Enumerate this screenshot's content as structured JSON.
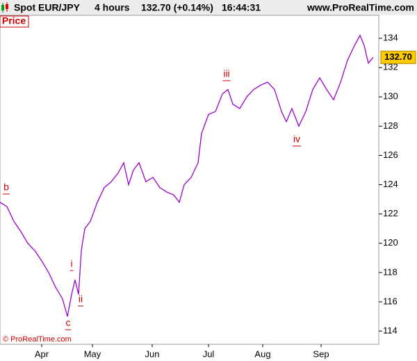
{
  "chart_data": {
    "type": "line",
    "instrument": "Spot EUR/JPY",
    "timeframe": "4 hours",
    "change": "132.70 (+0.14%)",
    "time": "16:44:31",
    "site": "www.ProRealTime.com",
    "panel_label": "Price",
    "copyright": "© ProRealTime.com",
    "x": [
      0,
      10,
      20,
      30,
      40,
      50,
      60,
      70,
      80,
      90,
      97,
      103,
      108,
      113,
      117,
      122,
      130,
      140,
      150,
      160,
      170,
      178,
      185,
      192,
      200,
      210,
      220,
      230,
      240,
      250,
      258,
      265,
      275,
      285,
      290,
      300,
      310,
      320,
      328,
      335,
      345,
      355,
      365,
      375,
      385,
      395,
      405,
      412,
      420,
      430,
      440,
      450,
      460,
      470,
      480,
      490,
      500,
      510,
      518,
      524,
      530,
      537
    ],
    "series": [
      {
        "name": "EUR/JPY",
        "color": "#9a00cc",
        "values": [
          122.8,
          122.5,
          121.5,
          120.8,
          120.0,
          119.5,
          118.8,
          118.0,
          117.0,
          116.2,
          115.0,
          116.5,
          117.5,
          116.5,
          119.5,
          121.0,
          121.5,
          122.8,
          123.8,
          124.2,
          124.8,
          125.5,
          124.0,
          125.0,
          125.5,
          124.2,
          124.5,
          123.8,
          123.5,
          123.3,
          122.8,
          124.0,
          124.5,
          125.5,
          127.5,
          128.8,
          129.0,
          130.2,
          130.5,
          129.5,
          129.2,
          130.0,
          130.5,
          130.8,
          131.0,
          130.5,
          129.0,
          128.3,
          129.2,
          128.0,
          129.0,
          130.5,
          131.3,
          130.5,
          129.8,
          131.0,
          132.5,
          133.5,
          134.2,
          133.5,
          132.3,
          132.7
        ]
      }
    ],
    "last_price": {
      "value": 132.7,
      "label": "132.70"
    },
    "xlim": [
      0,
      545
    ],
    "xticks": [
      {
        "value": 60,
        "label": "Apr"
      },
      {
        "value": 133,
        "label": "May"
      },
      {
        "value": 219,
        "label": "Jun"
      },
      {
        "value": 300,
        "label": "Jul"
      },
      {
        "value": 378,
        "label": "Aug"
      },
      {
        "value": 462,
        "label": "Sep"
      }
    ],
    "ylim": [
      113.1,
      135.57
    ],
    "yticks": [
      114,
      116,
      118,
      120,
      122,
      124,
      126,
      128,
      130,
      132,
      134
    ],
    "annotations": [
      "b",
      "i",
      "ii",
      "c",
      "iii",
      "iv"
    ]
  }
}
